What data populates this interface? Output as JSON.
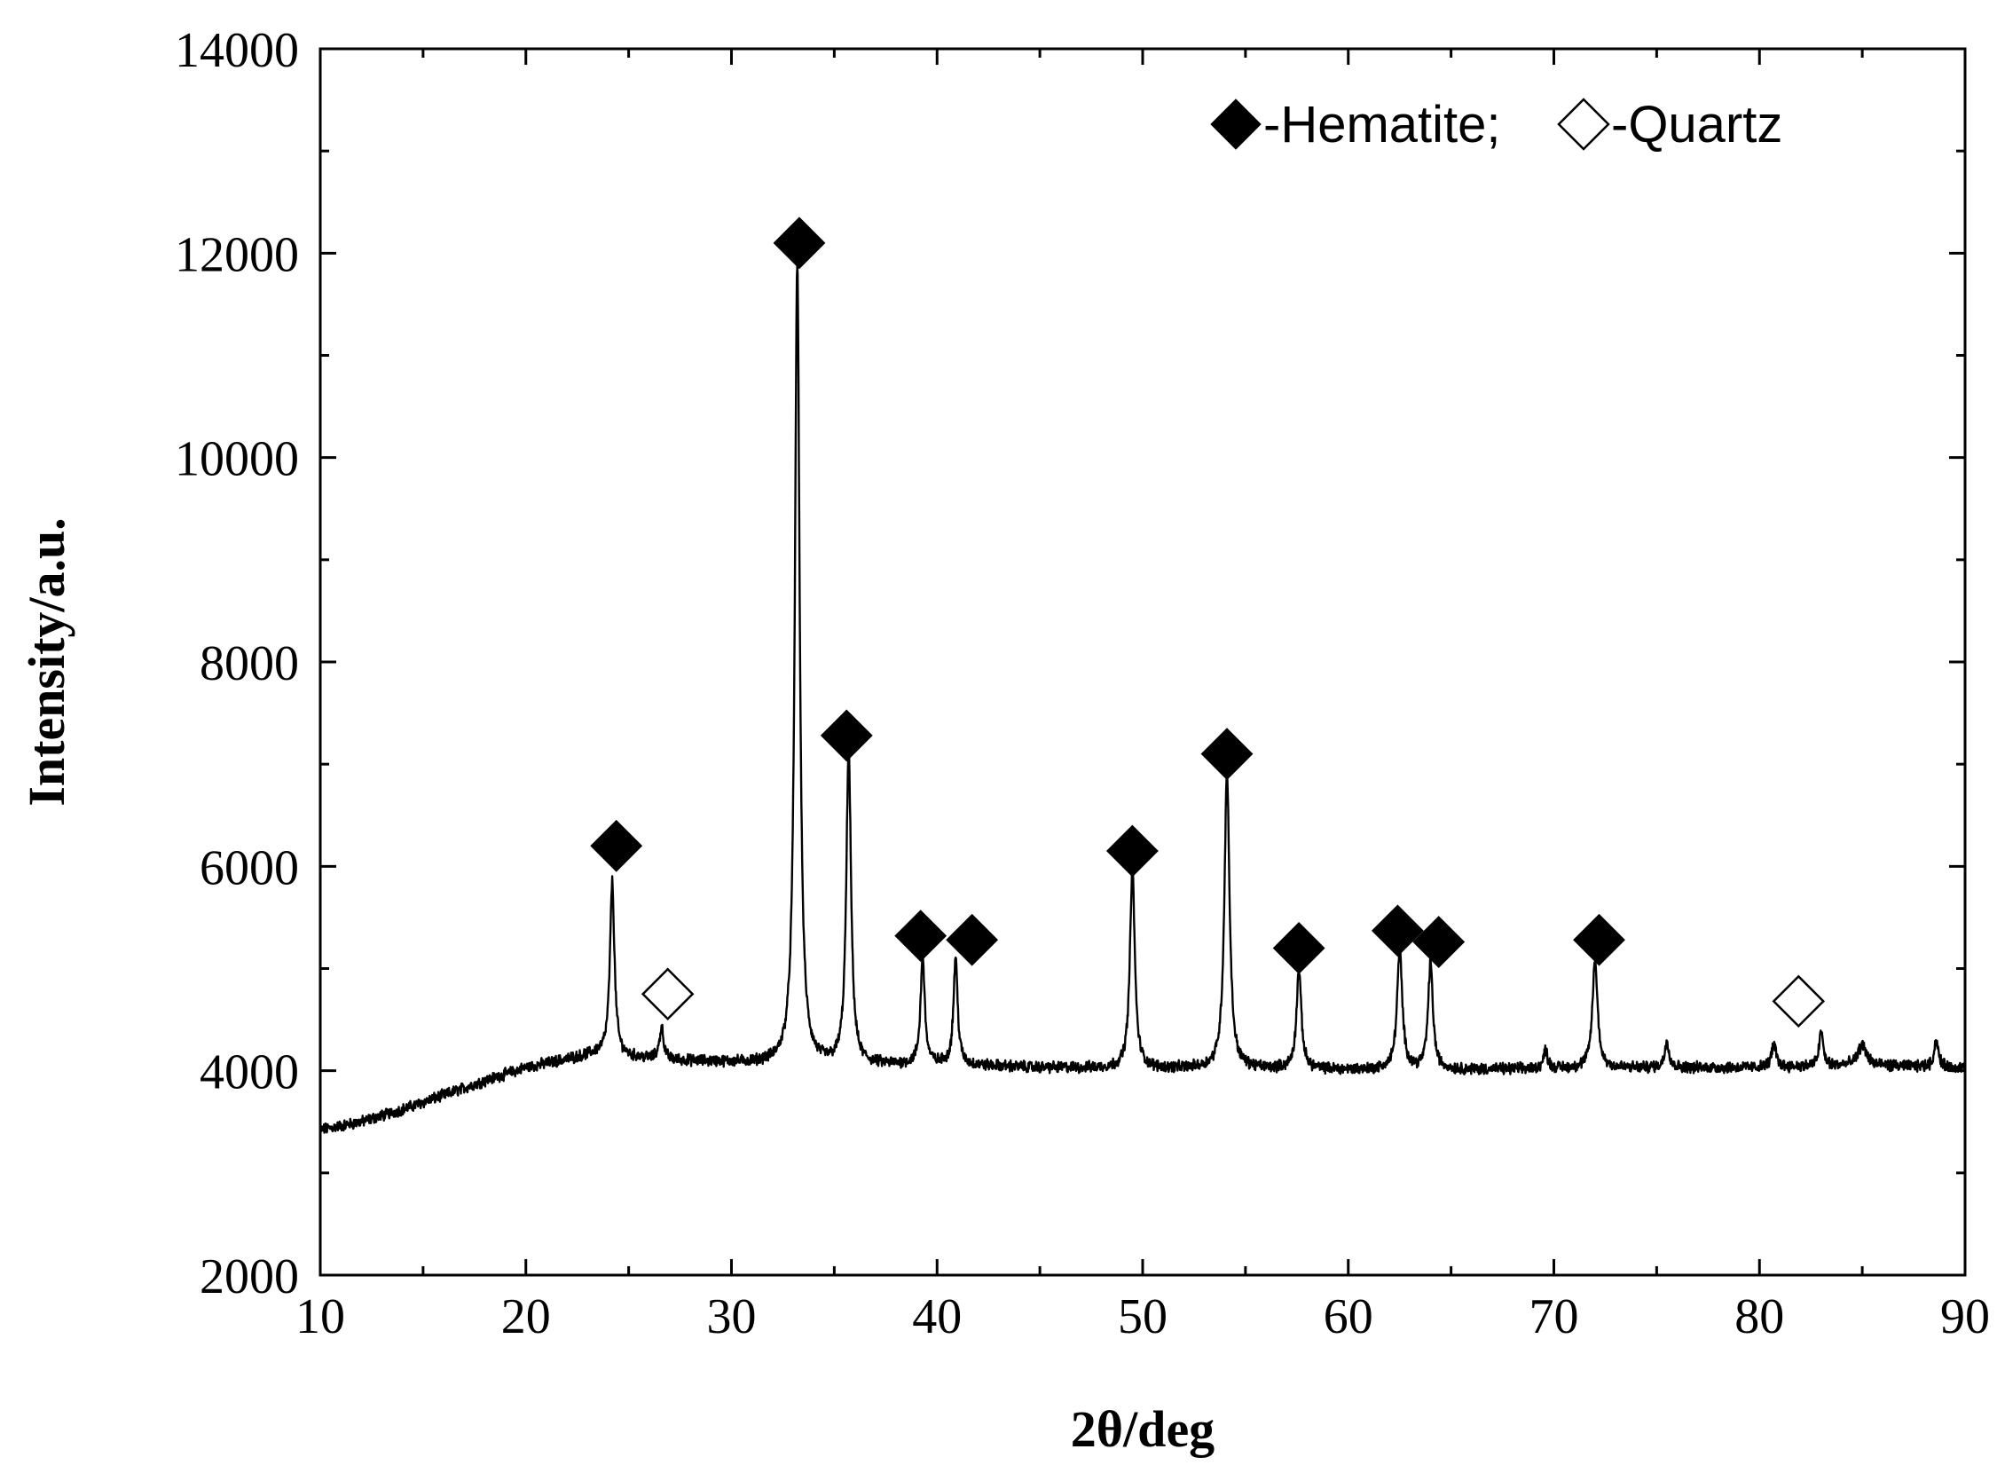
{
  "chart_data": {
    "type": "line",
    "xlabel": "2θ/deg",
    "ylabel": "Intensity/a.u.",
    "xlim": [
      10,
      90
    ],
    "ylim": [
      2000,
      14000
    ],
    "x_ticks": [
      10,
      20,
      30,
      40,
      50,
      60,
      70,
      80,
      90
    ],
    "y_ticks": [
      2000,
      4000,
      6000,
      8000,
      10000,
      12000,
      14000
    ],
    "grid": false,
    "legend": {
      "placement": "top-right",
      "entries": [
        {
          "marker": "filled-diamond",
          "label": "-Hematite;"
        },
        {
          "marker": "open-diamond",
          "label": "-Quartz"
        }
      ]
    },
    "baseline": [
      [
        10,
        3420
      ],
      [
        12,
        3500
      ],
      [
        14,
        3620
      ],
      [
        16,
        3760
      ],
      [
        18,
        3900
      ],
      [
        20,
        4030
      ],
      [
        22,
        4110
      ],
      [
        23.5,
        4170
      ],
      [
        25,
        4130
      ],
      [
        27,
        4100
      ],
      [
        30,
        4080
      ],
      [
        33,
        4060
      ],
      [
        35,
        4050
      ],
      [
        40,
        4060
      ],
      [
        45,
        4030
      ],
      [
        50,
        4020
      ],
      [
        55,
        4020
      ],
      [
        60,
        4010
      ],
      [
        65,
        4010
      ],
      [
        70,
        4020
      ],
      [
        75,
        4030
      ],
      [
        80,
        4030
      ],
      [
        85,
        4050
      ],
      [
        90,
        4030
      ]
    ],
    "peaks": [
      {
        "x": 24.2,
        "y": 5850,
        "w": 0.13
      },
      {
        "x": 26.6,
        "y": 4420,
        "w": 0.12
      },
      {
        "x": 33.2,
        "y": 11900,
        "w": 0.14
      },
      {
        "x": 35.7,
        "y": 7100,
        "w": 0.14
      },
      {
        "x": 39.3,
        "y": 5120,
        "w": 0.12
      },
      {
        "x": 40.9,
        "y": 5100,
        "w": 0.12
      },
      {
        "x": 49.5,
        "y": 5980,
        "w": 0.14
      },
      {
        "x": 54.1,
        "y": 6920,
        "w": 0.15
      },
      {
        "x": 57.6,
        "y": 4980,
        "w": 0.14
      },
      {
        "x": 62.5,
        "y": 5180,
        "w": 0.15
      },
      {
        "x": 64.0,
        "y": 5050,
        "w": 0.14
      },
      {
        "x": 69.6,
        "y": 4200,
        "w": 0.12
      },
      {
        "x": 72.0,
        "y": 5080,
        "w": 0.15
      },
      {
        "x": 75.5,
        "y": 4300,
        "w": 0.12
      },
      {
        "x": 80.7,
        "y": 4250,
        "w": 0.14
      },
      {
        "x": 83.0,
        "y": 4380,
        "w": 0.12
      },
      {
        "x": 85.0,
        "y": 4250,
        "w": 0.25
      },
      {
        "x": 88.6,
        "y": 4300,
        "w": 0.12
      }
    ],
    "markers": [
      {
        "phase": "Hematite",
        "x": 24.4,
        "y": 6200
      },
      {
        "phase": "Quartz",
        "x": 26.9,
        "y": 4750
      },
      {
        "phase": "Hematite",
        "x": 33.3,
        "y": 12100
      },
      {
        "phase": "Hematite",
        "x": 35.6,
        "y": 7280
      },
      {
        "phase": "Hematite",
        "x": 39.2,
        "y": 5320
      },
      {
        "phase": "Hematite",
        "x": 41.7,
        "y": 5280
      },
      {
        "phase": "Hematite",
        "x": 49.5,
        "y": 6150
      },
      {
        "phase": "Hematite",
        "x": 54.1,
        "y": 7100
      },
      {
        "phase": "Hematite",
        "x": 57.6,
        "y": 5200
      },
      {
        "phase": "Hematite",
        "x": 62.4,
        "y": 5370
      },
      {
        "phase": "Hematite",
        "x": 64.4,
        "y": 5260
      },
      {
        "phase": "Hematite",
        "x": 72.2,
        "y": 5280
      },
      {
        "phase": "Quartz",
        "x": 81.9,
        "y": 4680
      }
    ],
    "colors": {
      "line": "#000000",
      "axis": "#000000",
      "marker_fill": "#000000",
      "open_marker_fill": "#ffffff"
    }
  }
}
